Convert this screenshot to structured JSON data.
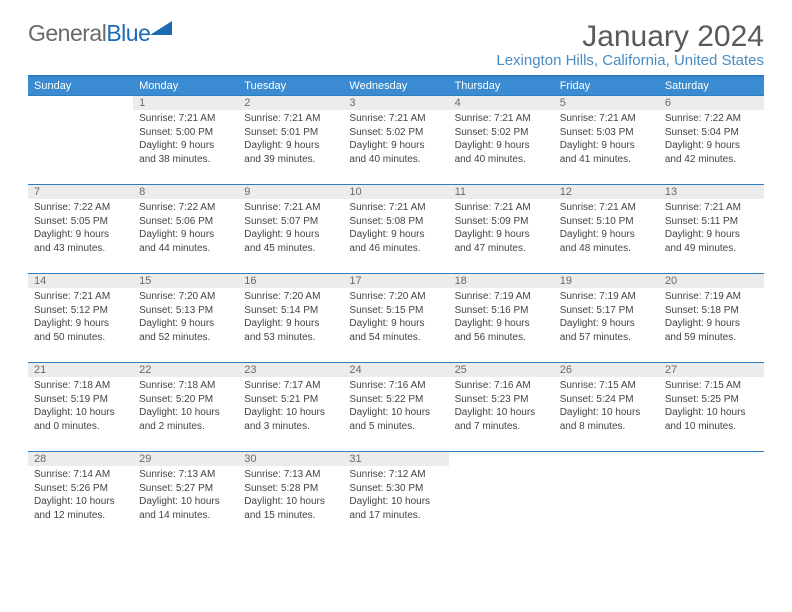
{
  "brand": {
    "part1": "General",
    "part2": "Blue"
  },
  "title": "January 2024",
  "location": "Lexington Hills, California, United States",
  "colors": {
    "header_bg": "#3a8bd1",
    "header_text": "#ffffff",
    "border": "#2f7dc1",
    "daynum_bg": "#ececec",
    "daynum_text": "#6a6a6a",
    "body_text": "#444",
    "location_text": "#4a8bc2",
    "title_text": "#5a5a5a"
  },
  "weekdays": [
    "Sunday",
    "Monday",
    "Tuesday",
    "Wednesday",
    "Thursday",
    "Friday",
    "Saturday"
  ],
  "weeks": [
    [
      null,
      {
        "n": "1",
        "sr": "Sunrise: 7:21 AM",
        "ss": "Sunset: 5:00 PM",
        "dl": "Daylight: 9 hours and 38 minutes."
      },
      {
        "n": "2",
        "sr": "Sunrise: 7:21 AM",
        "ss": "Sunset: 5:01 PM",
        "dl": "Daylight: 9 hours and 39 minutes."
      },
      {
        "n": "3",
        "sr": "Sunrise: 7:21 AM",
        "ss": "Sunset: 5:02 PM",
        "dl": "Daylight: 9 hours and 40 minutes."
      },
      {
        "n": "4",
        "sr": "Sunrise: 7:21 AM",
        "ss": "Sunset: 5:02 PM",
        "dl": "Daylight: 9 hours and 40 minutes."
      },
      {
        "n": "5",
        "sr": "Sunrise: 7:21 AM",
        "ss": "Sunset: 5:03 PM",
        "dl": "Daylight: 9 hours and 41 minutes."
      },
      {
        "n": "6",
        "sr": "Sunrise: 7:22 AM",
        "ss": "Sunset: 5:04 PM",
        "dl": "Daylight: 9 hours and 42 minutes."
      }
    ],
    [
      {
        "n": "7",
        "sr": "Sunrise: 7:22 AM",
        "ss": "Sunset: 5:05 PM",
        "dl": "Daylight: 9 hours and 43 minutes."
      },
      {
        "n": "8",
        "sr": "Sunrise: 7:22 AM",
        "ss": "Sunset: 5:06 PM",
        "dl": "Daylight: 9 hours and 44 minutes."
      },
      {
        "n": "9",
        "sr": "Sunrise: 7:21 AM",
        "ss": "Sunset: 5:07 PM",
        "dl": "Daylight: 9 hours and 45 minutes."
      },
      {
        "n": "10",
        "sr": "Sunrise: 7:21 AM",
        "ss": "Sunset: 5:08 PM",
        "dl": "Daylight: 9 hours and 46 minutes."
      },
      {
        "n": "11",
        "sr": "Sunrise: 7:21 AM",
        "ss": "Sunset: 5:09 PM",
        "dl": "Daylight: 9 hours and 47 minutes."
      },
      {
        "n": "12",
        "sr": "Sunrise: 7:21 AM",
        "ss": "Sunset: 5:10 PM",
        "dl": "Daylight: 9 hours and 48 minutes."
      },
      {
        "n": "13",
        "sr": "Sunrise: 7:21 AM",
        "ss": "Sunset: 5:11 PM",
        "dl": "Daylight: 9 hours and 49 minutes."
      }
    ],
    [
      {
        "n": "14",
        "sr": "Sunrise: 7:21 AM",
        "ss": "Sunset: 5:12 PM",
        "dl": "Daylight: 9 hours and 50 minutes."
      },
      {
        "n": "15",
        "sr": "Sunrise: 7:20 AM",
        "ss": "Sunset: 5:13 PM",
        "dl": "Daylight: 9 hours and 52 minutes."
      },
      {
        "n": "16",
        "sr": "Sunrise: 7:20 AM",
        "ss": "Sunset: 5:14 PM",
        "dl": "Daylight: 9 hours and 53 minutes."
      },
      {
        "n": "17",
        "sr": "Sunrise: 7:20 AM",
        "ss": "Sunset: 5:15 PM",
        "dl": "Daylight: 9 hours and 54 minutes."
      },
      {
        "n": "18",
        "sr": "Sunrise: 7:19 AM",
        "ss": "Sunset: 5:16 PM",
        "dl": "Daylight: 9 hours and 56 minutes."
      },
      {
        "n": "19",
        "sr": "Sunrise: 7:19 AM",
        "ss": "Sunset: 5:17 PM",
        "dl": "Daylight: 9 hours and 57 minutes."
      },
      {
        "n": "20",
        "sr": "Sunrise: 7:19 AM",
        "ss": "Sunset: 5:18 PM",
        "dl": "Daylight: 9 hours and 59 minutes."
      }
    ],
    [
      {
        "n": "21",
        "sr": "Sunrise: 7:18 AM",
        "ss": "Sunset: 5:19 PM",
        "dl": "Daylight: 10 hours and 0 minutes."
      },
      {
        "n": "22",
        "sr": "Sunrise: 7:18 AM",
        "ss": "Sunset: 5:20 PM",
        "dl": "Daylight: 10 hours and 2 minutes."
      },
      {
        "n": "23",
        "sr": "Sunrise: 7:17 AM",
        "ss": "Sunset: 5:21 PM",
        "dl": "Daylight: 10 hours and 3 minutes."
      },
      {
        "n": "24",
        "sr": "Sunrise: 7:16 AM",
        "ss": "Sunset: 5:22 PM",
        "dl": "Daylight: 10 hours and 5 minutes."
      },
      {
        "n": "25",
        "sr": "Sunrise: 7:16 AM",
        "ss": "Sunset: 5:23 PM",
        "dl": "Daylight: 10 hours and 7 minutes."
      },
      {
        "n": "26",
        "sr": "Sunrise: 7:15 AM",
        "ss": "Sunset: 5:24 PM",
        "dl": "Daylight: 10 hours and 8 minutes."
      },
      {
        "n": "27",
        "sr": "Sunrise: 7:15 AM",
        "ss": "Sunset: 5:25 PM",
        "dl": "Daylight: 10 hours and 10 minutes."
      }
    ],
    [
      {
        "n": "28",
        "sr": "Sunrise: 7:14 AM",
        "ss": "Sunset: 5:26 PM",
        "dl": "Daylight: 10 hours and 12 minutes."
      },
      {
        "n": "29",
        "sr": "Sunrise: 7:13 AM",
        "ss": "Sunset: 5:27 PM",
        "dl": "Daylight: 10 hours and 14 minutes."
      },
      {
        "n": "30",
        "sr": "Sunrise: 7:13 AM",
        "ss": "Sunset: 5:28 PM",
        "dl": "Daylight: 10 hours and 15 minutes."
      },
      {
        "n": "31",
        "sr": "Sunrise: 7:12 AM",
        "ss": "Sunset: 5:30 PM",
        "dl": "Daylight: 10 hours and 17 minutes."
      },
      null,
      null,
      null
    ]
  ]
}
